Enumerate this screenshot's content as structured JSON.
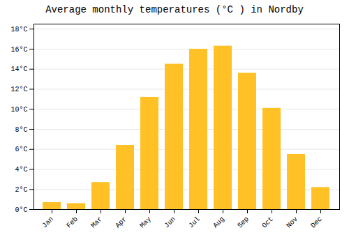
{
  "chart_data": {
    "type": "bar",
    "title": "Average monthly temperatures (°C ) in Nordby",
    "categories": [
      "Jan",
      "Feb",
      "Mar",
      "Apr",
      "May",
      "Jun",
      "Jul",
      "Aug",
      "Sep",
      "Oct",
      "Nov",
      "Dec"
    ],
    "values": [
      0.7,
      0.6,
      2.7,
      6.4,
      11.2,
      14.5,
      16.0,
      16.3,
      13.6,
      10.1,
      5.5,
      2.2
    ],
    "color": "#FFC125",
    "ylim": [
      0,
      18.5
    ],
    "yticks": [
      {
        "value": 0,
        "label": "0°C"
      },
      {
        "value": 2,
        "label": "2°C"
      },
      {
        "value": 4,
        "label": "4°C"
      },
      {
        "value": 6,
        "label": "6°C"
      },
      {
        "value": 8,
        "label": "8°C"
      },
      {
        "value": 10,
        "label": "10°C"
      },
      {
        "value": 12,
        "label": "12°C"
      },
      {
        "value": 14,
        "label": "14°C"
      },
      {
        "value": 16,
        "label": "16°C"
      },
      {
        "value": 18,
        "label": "18°C"
      }
    ],
    "grid": true
  }
}
